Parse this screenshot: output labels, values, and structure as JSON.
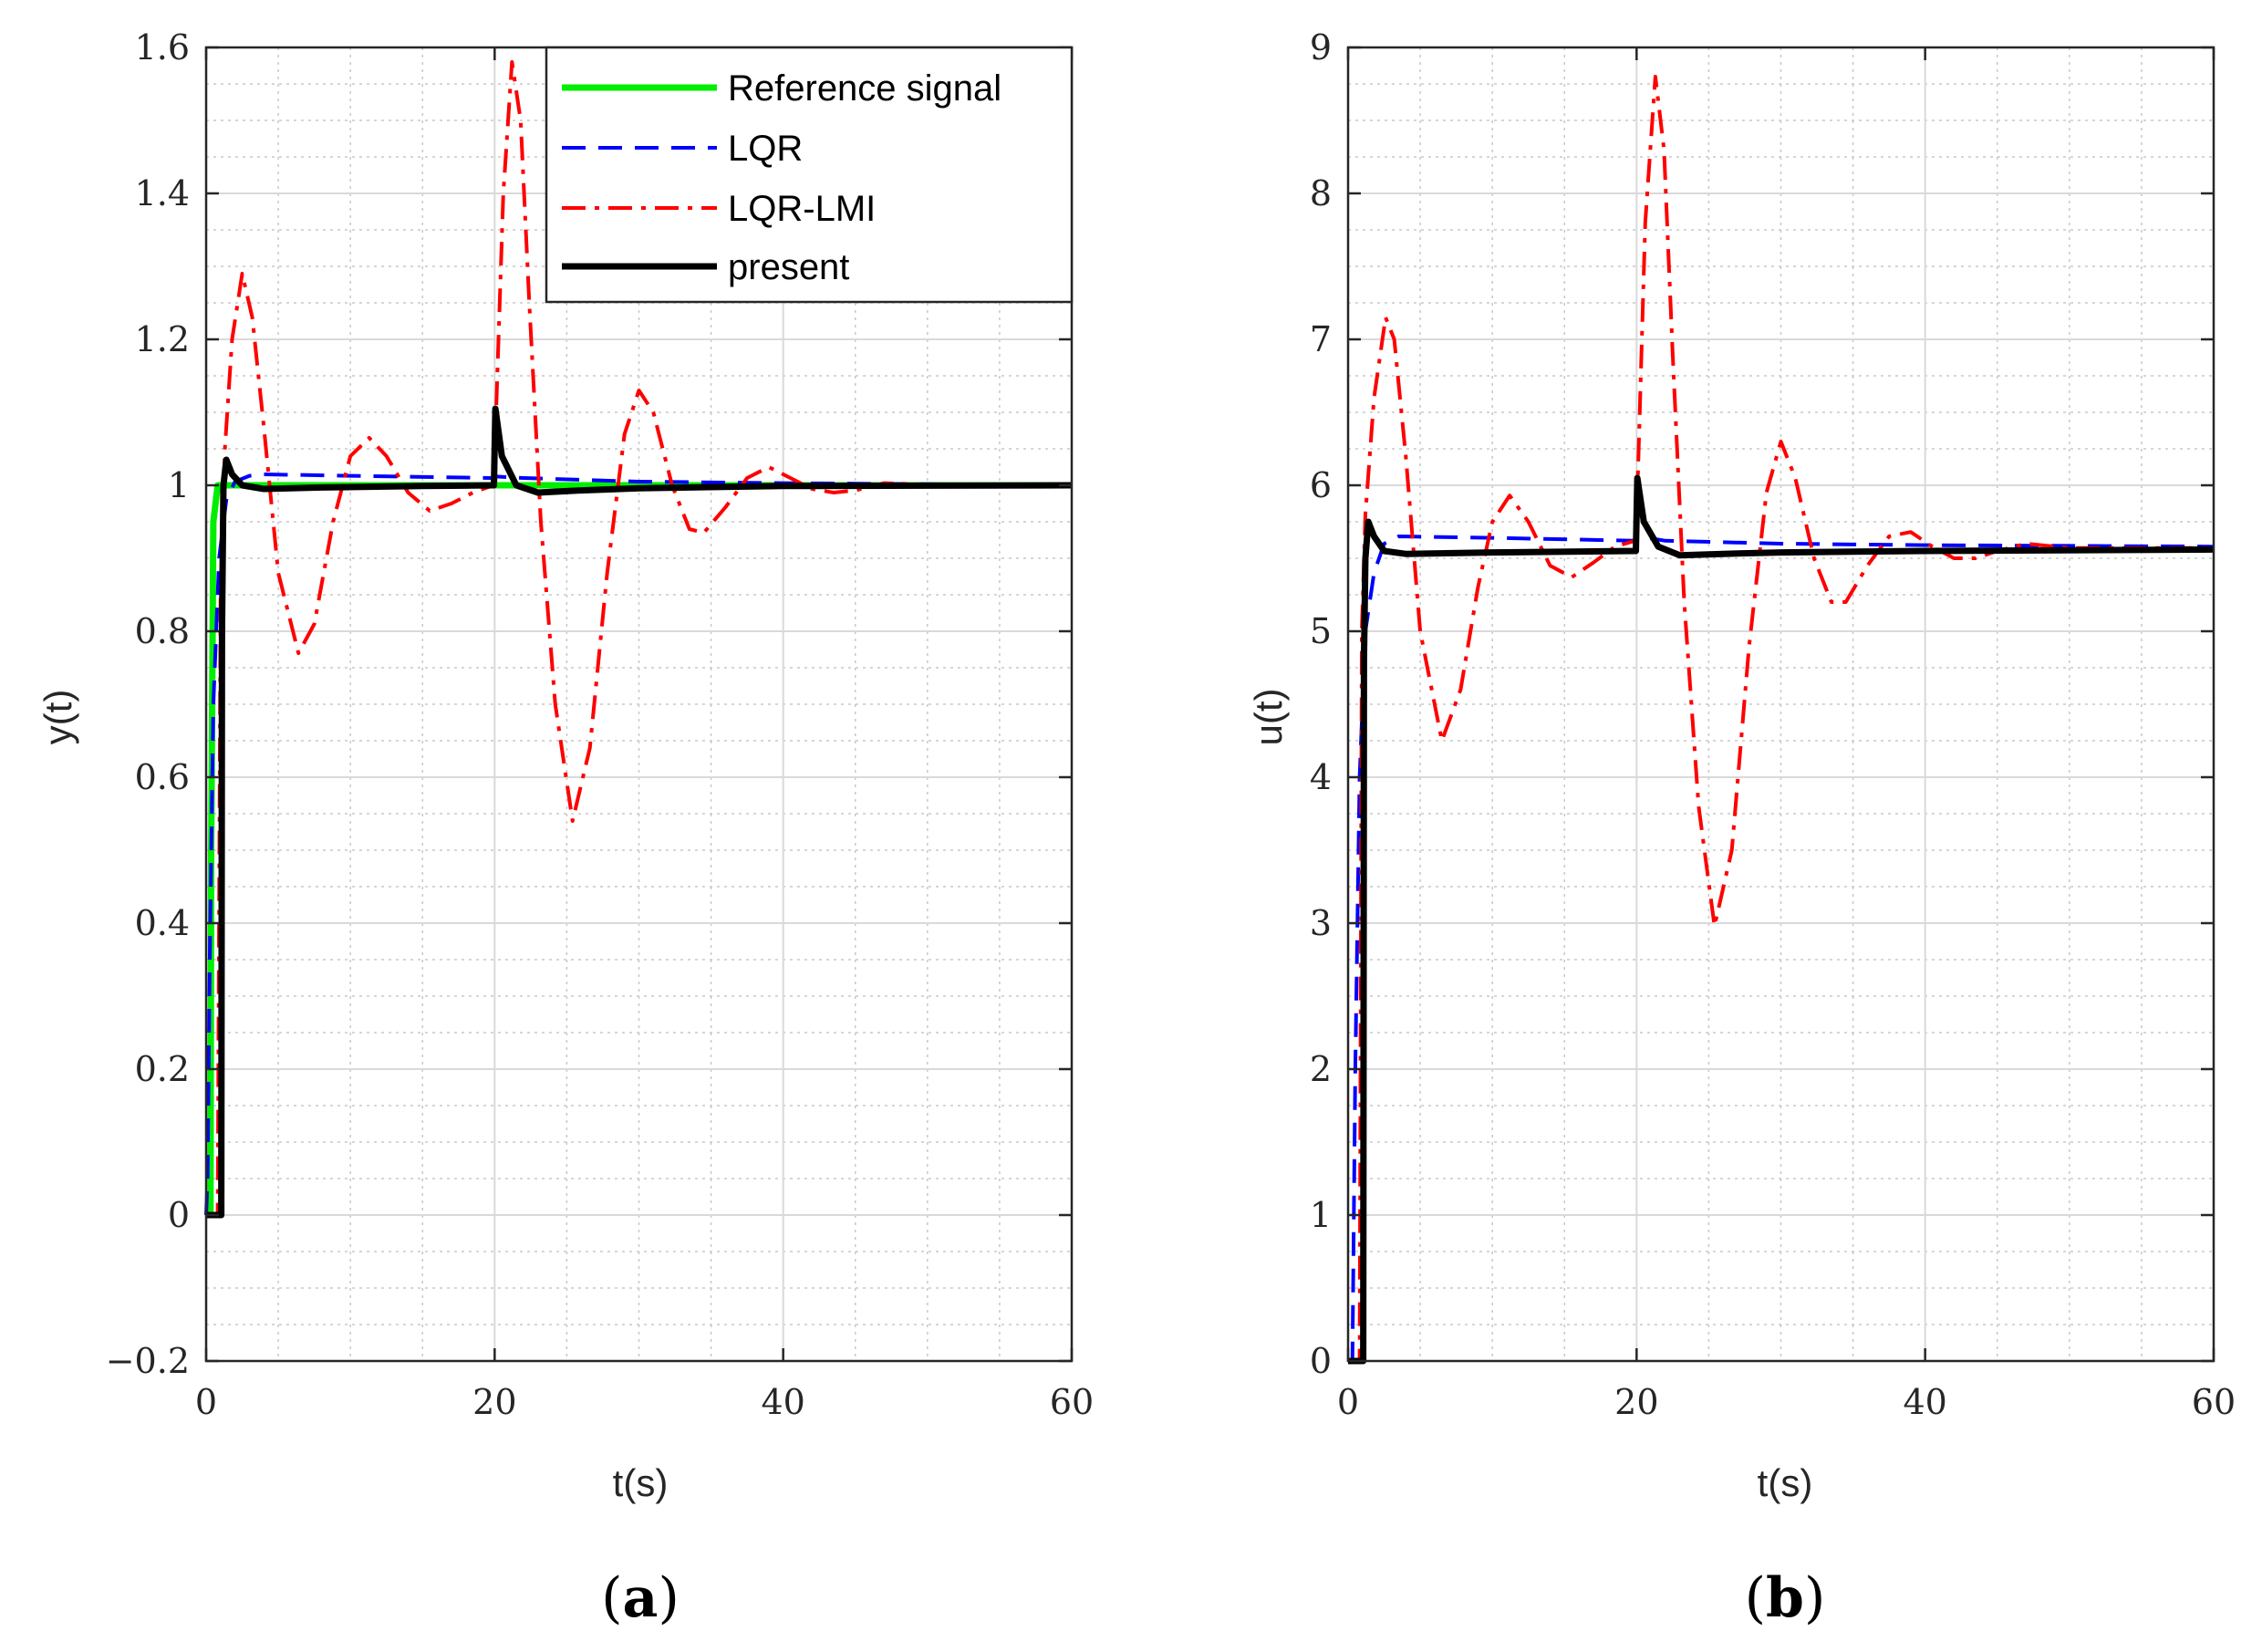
{
  "colors": {
    "reference": "#00ee00",
    "lqr": "#0000ff",
    "lqr_lmi": "#ff0000",
    "present": "#000000",
    "grid_major": "#d9d9d9",
    "grid_minor": "#c8c8c8",
    "axis": "#262626"
  },
  "legend": {
    "location": "top-right",
    "entries": [
      "Reference signal",
      "LQR",
      "LQR-LMI",
      "present"
    ]
  },
  "chart_data": [
    {
      "type": "line",
      "panel_label": {
        "open": "(",
        "letter": "a",
        "close": ")"
      },
      "xlabel": "t(s)",
      "ylabel": "y(t)",
      "xlim": [
        0,
        60
      ],
      "ylim": [
        -0.2,
        1.6
      ],
      "xticks": [
        0,
        20,
        40,
        60
      ],
      "xtick_labels": [
        "0",
        "20",
        "40",
        "60"
      ],
      "yticks": [
        -0.2,
        0,
        0.2,
        0.4,
        0.6,
        0.8,
        1,
        1.2,
        1.4,
        1.6
      ],
      "ytick_labels": [
        "−0.2",
        "0",
        "0.2",
        "0.4",
        "0.6",
        "0.8",
        "1",
        "1.2",
        "1.4",
        "1.6"
      ],
      "grid": true,
      "minor_grid": true,
      "series": [
        {
          "name": "Reference signal",
          "style": "solid",
          "points": [
            [
              0,
              0
            ],
            [
              0.3,
              0
            ],
            [
              0.35,
              0.5
            ],
            [
              0.5,
              0.95
            ],
            [
              0.8,
              1
            ],
            [
              60,
              1
            ]
          ]
        },
        {
          "name": "LQR",
          "style": "dashed",
          "points": [
            [
              0,
              0
            ],
            [
              0.1,
              0.05
            ],
            [
              0.25,
              0.35
            ],
            [
              0.5,
              0.7
            ],
            [
              0.9,
              0.9
            ],
            [
              1.4,
              0.98
            ],
            [
              2,
              1.005
            ],
            [
              3,
              1.013
            ],
            [
              4,
              1.015
            ],
            [
              10,
              1.013
            ],
            [
              19.9,
              1.01
            ],
            [
              20.1,
              1.012
            ],
            [
              22,
              1.01
            ],
            [
              30,
              1.005
            ],
            [
              40,
              1.003
            ],
            [
              60,
              1.0
            ]
          ]
        },
        {
          "name": "LQR-LMI",
          "style": "dashdot",
          "points": [
            [
              0,
              0
            ],
            [
              0.8,
              0
            ],
            [
              1.0,
              0.85
            ],
            [
              1.3,
              1.05
            ],
            [
              1.8,
              1.2
            ],
            [
              2.5,
              1.29
            ],
            [
              3.2,
              1.23
            ],
            [
              4,
              1.08
            ],
            [
              5,
              0.88
            ],
            [
              6.4,
              0.77
            ],
            [
              7.5,
              0.81
            ],
            [
              8.8,
              0.95
            ],
            [
              10,
              1.04
            ],
            [
              11.3,
              1.065
            ],
            [
              12.5,
              1.04
            ],
            [
              14,
              0.99
            ],
            [
              15.5,
              0.965
            ],
            [
              17,
              0.975
            ],
            [
              18.5,
              0.99
            ],
            [
              19.9,
              1.0
            ],
            [
              20.1,
              1.1
            ],
            [
              20.6,
              1.4
            ],
            [
              21.2,
              1.58
            ],
            [
              21.8,
              1.5
            ],
            [
              22.4,
              1.25
            ],
            [
              23.2,
              0.95
            ],
            [
              24.2,
              0.7
            ],
            [
              25.4,
              0.54
            ],
            [
              26.6,
              0.64
            ],
            [
              27.8,
              0.88
            ],
            [
              29,
              1.07
            ],
            [
              30,
              1.13
            ],
            [
              31,
              1.1
            ],
            [
              32.3,
              1.0
            ],
            [
              33.5,
              0.94
            ],
            [
              34.5,
              0.935
            ],
            [
              36,
              0.97
            ],
            [
              37.5,
              1.01
            ],
            [
              39,
              1.025
            ],
            [
              40.5,
              1.01
            ],
            [
              42,
              0.995
            ],
            [
              43.5,
              0.99
            ],
            [
              45,
              0.993
            ],
            [
              47,
              1.003
            ],
            [
              50,
              1.001
            ],
            [
              60,
              1.0
            ]
          ]
        },
        {
          "name": "present",
          "style": "solid-thick",
          "points": [
            [
              0,
              0
            ],
            [
              1.05,
              0
            ],
            [
              1.1,
              0.8
            ],
            [
              1.2,
              1.0
            ],
            [
              1.4,
              1.035
            ],
            [
              1.8,
              1.015
            ],
            [
              2.5,
              1.0
            ],
            [
              4,
              0.995
            ],
            [
              8,
              0.997
            ],
            [
              15,
              0.999
            ],
            [
              19.95,
              1.0
            ],
            [
              20.05,
              1.105
            ],
            [
              20.5,
              1.04
            ],
            [
              21.5,
              1.0
            ],
            [
              23,
              0.99
            ],
            [
              26,
              0.993
            ],
            [
              30,
              0.996
            ],
            [
              40,
              0.999
            ],
            [
              60,
              1.0
            ]
          ]
        }
      ]
    },
    {
      "type": "line",
      "panel_label": {
        "open": "(",
        "letter": "b",
        "close": ")"
      },
      "xlabel": "t(s)",
      "ylabel": "u(t)",
      "xlim": [
        0,
        60
      ],
      "ylim": [
        0,
        9
      ],
      "xticks": [
        0,
        20,
        40,
        60
      ],
      "xtick_labels": [
        "0",
        "20",
        "40",
        "60"
      ],
      "yticks": [
        0,
        1,
        2,
        3,
        4,
        5,
        6,
        7,
        8,
        9
      ],
      "ytick_labels": [
        "0",
        "1",
        "2",
        "3",
        "4",
        "5",
        "6",
        "7",
        "8",
        "9"
      ],
      "grid": true,
      "minor_grid": true,
      "series": [
        {
          "name": "LQR",
          "style": "dashed",
          "points": [
            [
              0,
              0
            ],
            [
              0.3,
              0
            ],
            [
              0.5,
              2.0
            ],
            [
              0.8,
              4.0
            ],
            [
              1.2,
              5.0
            ],
            [
              1.8,
              5.4
            ],
            [
              2.5,
              5.6
            ],
            [
              3.5,
              5.65
            ],
            [
              10,
              5.64
            ],
            [
              19.9,
              5.62
            ],
            [
              20.1,
              5.65
            ],
            [
              22,
              5.62
            ],
            [
              30,
              5.6
            ],
            [
              40,
              5.59
            ],
            [
              60,
              5.58
            ]
          ]
        },
        {
          "name": "LQR-LMI",
          "style": "dashdot",
          "points": [
            [
              0,
              0
            ],
            [
              0.8,
              0
            ],
            [
              0.95,
              5.0
            ],
            [
              1.2,
              5.8
            ],
            [
              1.8,
              6.6
            ],
            [
              2.6,
              7.15
            ],
            [
              3.2,
              7.0
            ],
            [
              4,
              6.2
            ],
            [
              5,
              5.0
            ],
            [
              6.5,
              4.25
            ],
            [
              7.8,
              4.6
            ],
            [
              9,
              5.3
            ],
            [
              10,
              5.75
            ],
            [
              11.2,
              5.93
            ],
            [
              12.5,
              5.75
            ],
            [
              14,
              5.45
            ],
            [
              15.5,
              5.37
            ],
            [
              17,
              5.47
            ],
            [
              18.5,
              5.58
            ],
            [
              19.9,
              5.62
            ],
            [
              20.1,
              6.1
            ],
            [
              20.6,
              7.8
            ],
            [
              21.3,
              8.8
            ],
            [
              21.9,
              8.3
            ],
            [
              22.5,
              6.9
            ],
            [
              23.3,
              5.2
            ],
            [
              24.3,
              3.8
            ],
            [
              25.4,
              2.98
            ],
            [
              26.6,
              3.5
            ],
            [
              27.8,
              4.9
            ],
            [
              29,
              5.95
            ],
            [
              30,
              6.3
            ],
            [
              31,
              6.05
            ],
            [
              32.3,
              5.5
            ],
            [
              33.5,
              5.2
            ],
            [
              34.5,
              5.2
            ],
            [
              36,
              5.45
            ],
            [
              37.5,
              5.65
            ],
            [
              39,
              5.68
            ],
            [
              40.5,
              5.58
            ],
            [
              42,
              5.5
            ],
            [
              43.5,
              5.5
            ],
            [
              45,
              5.55
            ],
            [
              47,
              5.6
            ],
            [
              50,
              5.57
            ],
            [
              60,
              5.57
            ]
          ]
        },
        {
          "name": "present",
          "style": "solid-thick",
          "points": [
            [
              0,
              0
            ],
            [
              1.05,
              0
            ],
            [
              1.1,
              4.8
            ],
            [
              1.2,
              5.5
            ],
            [
              1.4,
              5.75
            ],
            [
              1.8,
              5.65
            ],
            [
              2.5,
              5.55
            ],
            [
              4,
              5.53
            ],
            [
              10,
              5.54
            ],
            [
              19.95,
              5.55
            ],
            [
              20.05,
              6.05
            ],
            [
              20.5,
              5.75
            ],
            [
              21.5,
              5.58
            ],
            [
              23,
              5.52
            ],
            [
              26,
              5.53
            ],
            [
              30,
              5.54
            ],
            [
              40,
              5.55
            ],
            [
              60,
              5.56
            ]
          ]
        }
      ]
    }
  ]
}
